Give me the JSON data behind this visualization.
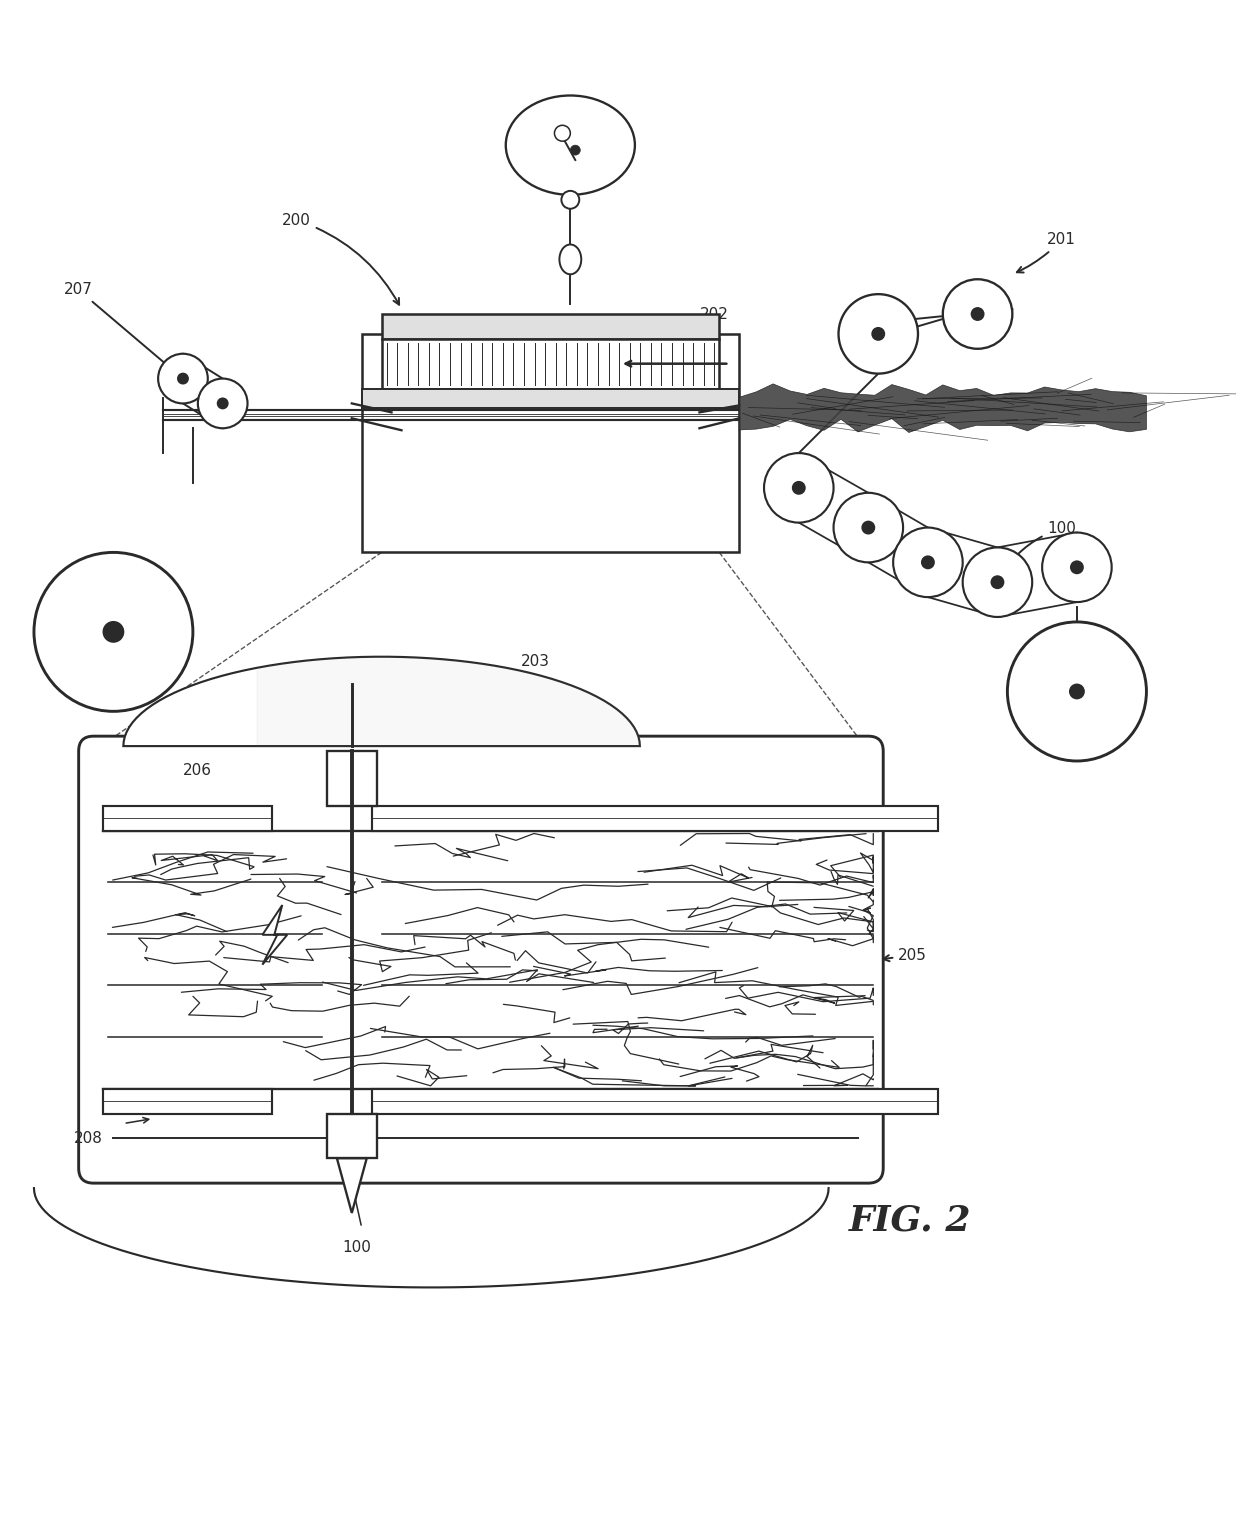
{
  "fig_label": "FIG. 2",
  "background_color": "#ffffff",
  "line_color": "#2a2a2a",
  "lw": 1.4,
  "figsize": [
    12.4,
    15.21
  ],
  "dpi": 100
}
